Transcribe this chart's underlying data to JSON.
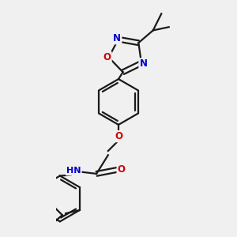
{
  "bg_color": "#f0f0f0",
  "bond_color": "#1a1a1a",
  "N_color": "#0000cc",
  "O_color": "#cc0000",
  "line_width": 1.6,
  "dbo": 0.06,
  "figsize": [
    3.0,
    3.0
  ],
  "dpi": 100,
  "xlim": [
    -1.5,
    1.5
  ],
  "ylim": [
    -2.8,
    2.8
  ]
}
